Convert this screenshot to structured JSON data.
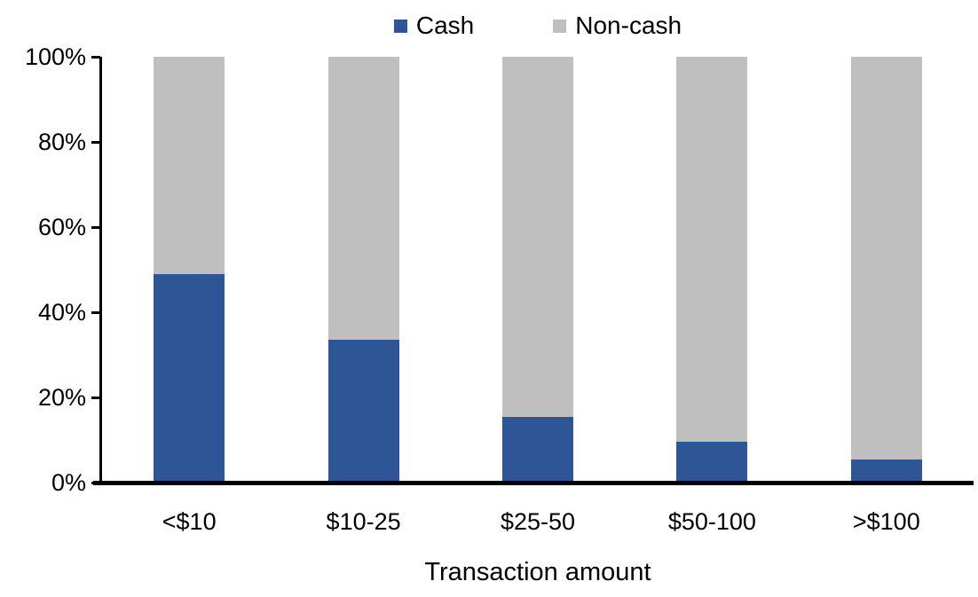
{
  "chart_data": {
    "type": "bar",
    "variant": "100-percent-stacked-column",
    "categories": [
      "<$10",
      "$10-25",
      "$25-50",
      "$50-100",
      ">$100"
    ],
    "series": [
      {
        "name": "Cash",
        "color": "#2E5596",
        "values": [
          49,
          33.5,
          15.5,
          9.5,
          5.5
        ]
      },
      {
        "name": "Non-cash",
        "color": "#BFBFBF",
        "values": [
          51,
          66.5,
          84.5,
          90.5,
          94.5
        ]
      }
    ],
    "title": "",
    "xlabel": "Transaction amount",
    "ylabel": "",
    "ylim": [
      0,
      100
    ],
    "y_ticks": [
      "0%",
      "20%",
      "40%",
      "60%",
      "80%",
      "100%"
    ],
    "legend_position": "top",
    "grid": false,
    "axis_color": "#000000",
    "text_color": "#000000",
    "background_color": "#FFFFFF"
  }
}
